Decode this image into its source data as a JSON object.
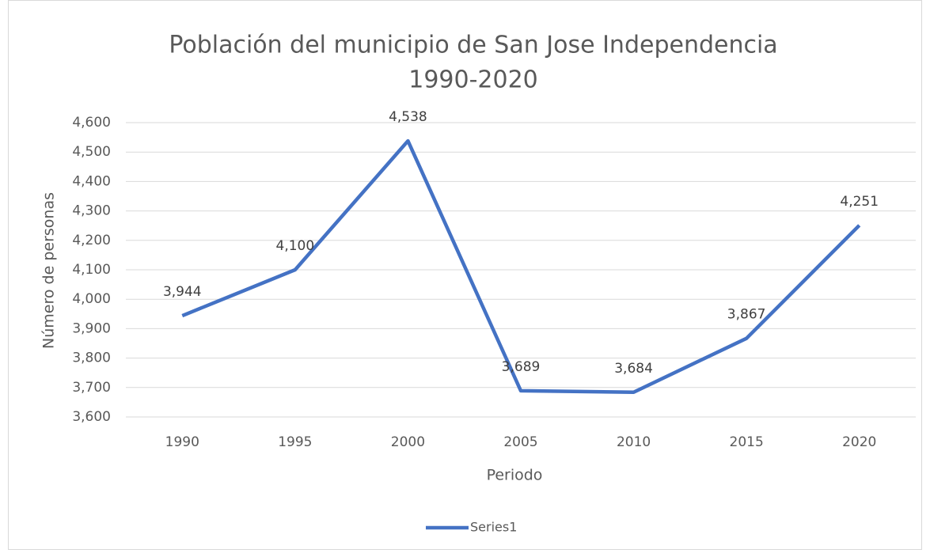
{
  "chart_data": {
    "type": "line",
    "title": "Población del municipio de San Jose Independencia",
    "subtitle": "1990-2020",
    "x_label": "Periodo",
    "y_label": "Número de personas",
    "categories": [
      "1990",
      "1995",
      "2000",
      "2005",
      "2010",
      "2015",
      "2020"
    ],
    "series": [
      {
        "name": "Series1",
        "color": "#4472c4",
        "values": [
          3944,
          4100,
          4538,
          3689,
          3684,
          3867,
          4251
        ],
        "value_labels": [
          "3,944",
          "4,100",
          "4,538",
          "3,689",
          "3,684",
          "3,867",
          "4,251"
        ]
      }
    ],
    "ylim": [
      3600,
      4600
    ],
    "yticks": [
      {
        "value": 3600,
        "label": "3,600"
      },
      {
        "value": 3700,
        "label": "3,700"
      },
      {
        "value": 3800,
        "label": "3,800"
      },
      {
        "value": 3900,
        "label": "3,900"
      },
      {
        "value": 4000,
        "label": "4,000"
      },
      {
        "value": 4100,
        "label": "4,100"
      },
      {
        "value": 4200,
        "label": "4,200"
      },
      {
        "value": 4300,
        "label": "4,300"
      },
      {
        "value": 4400,
        "label": "4,400"
      },
      {
        "value": 4500,
        "label": "4,500"
      },
      {
        "value": 4600,
        "label": "4,600"
      }
    ],
    "grid": true,
    "legend": "bottom"
  }
}
